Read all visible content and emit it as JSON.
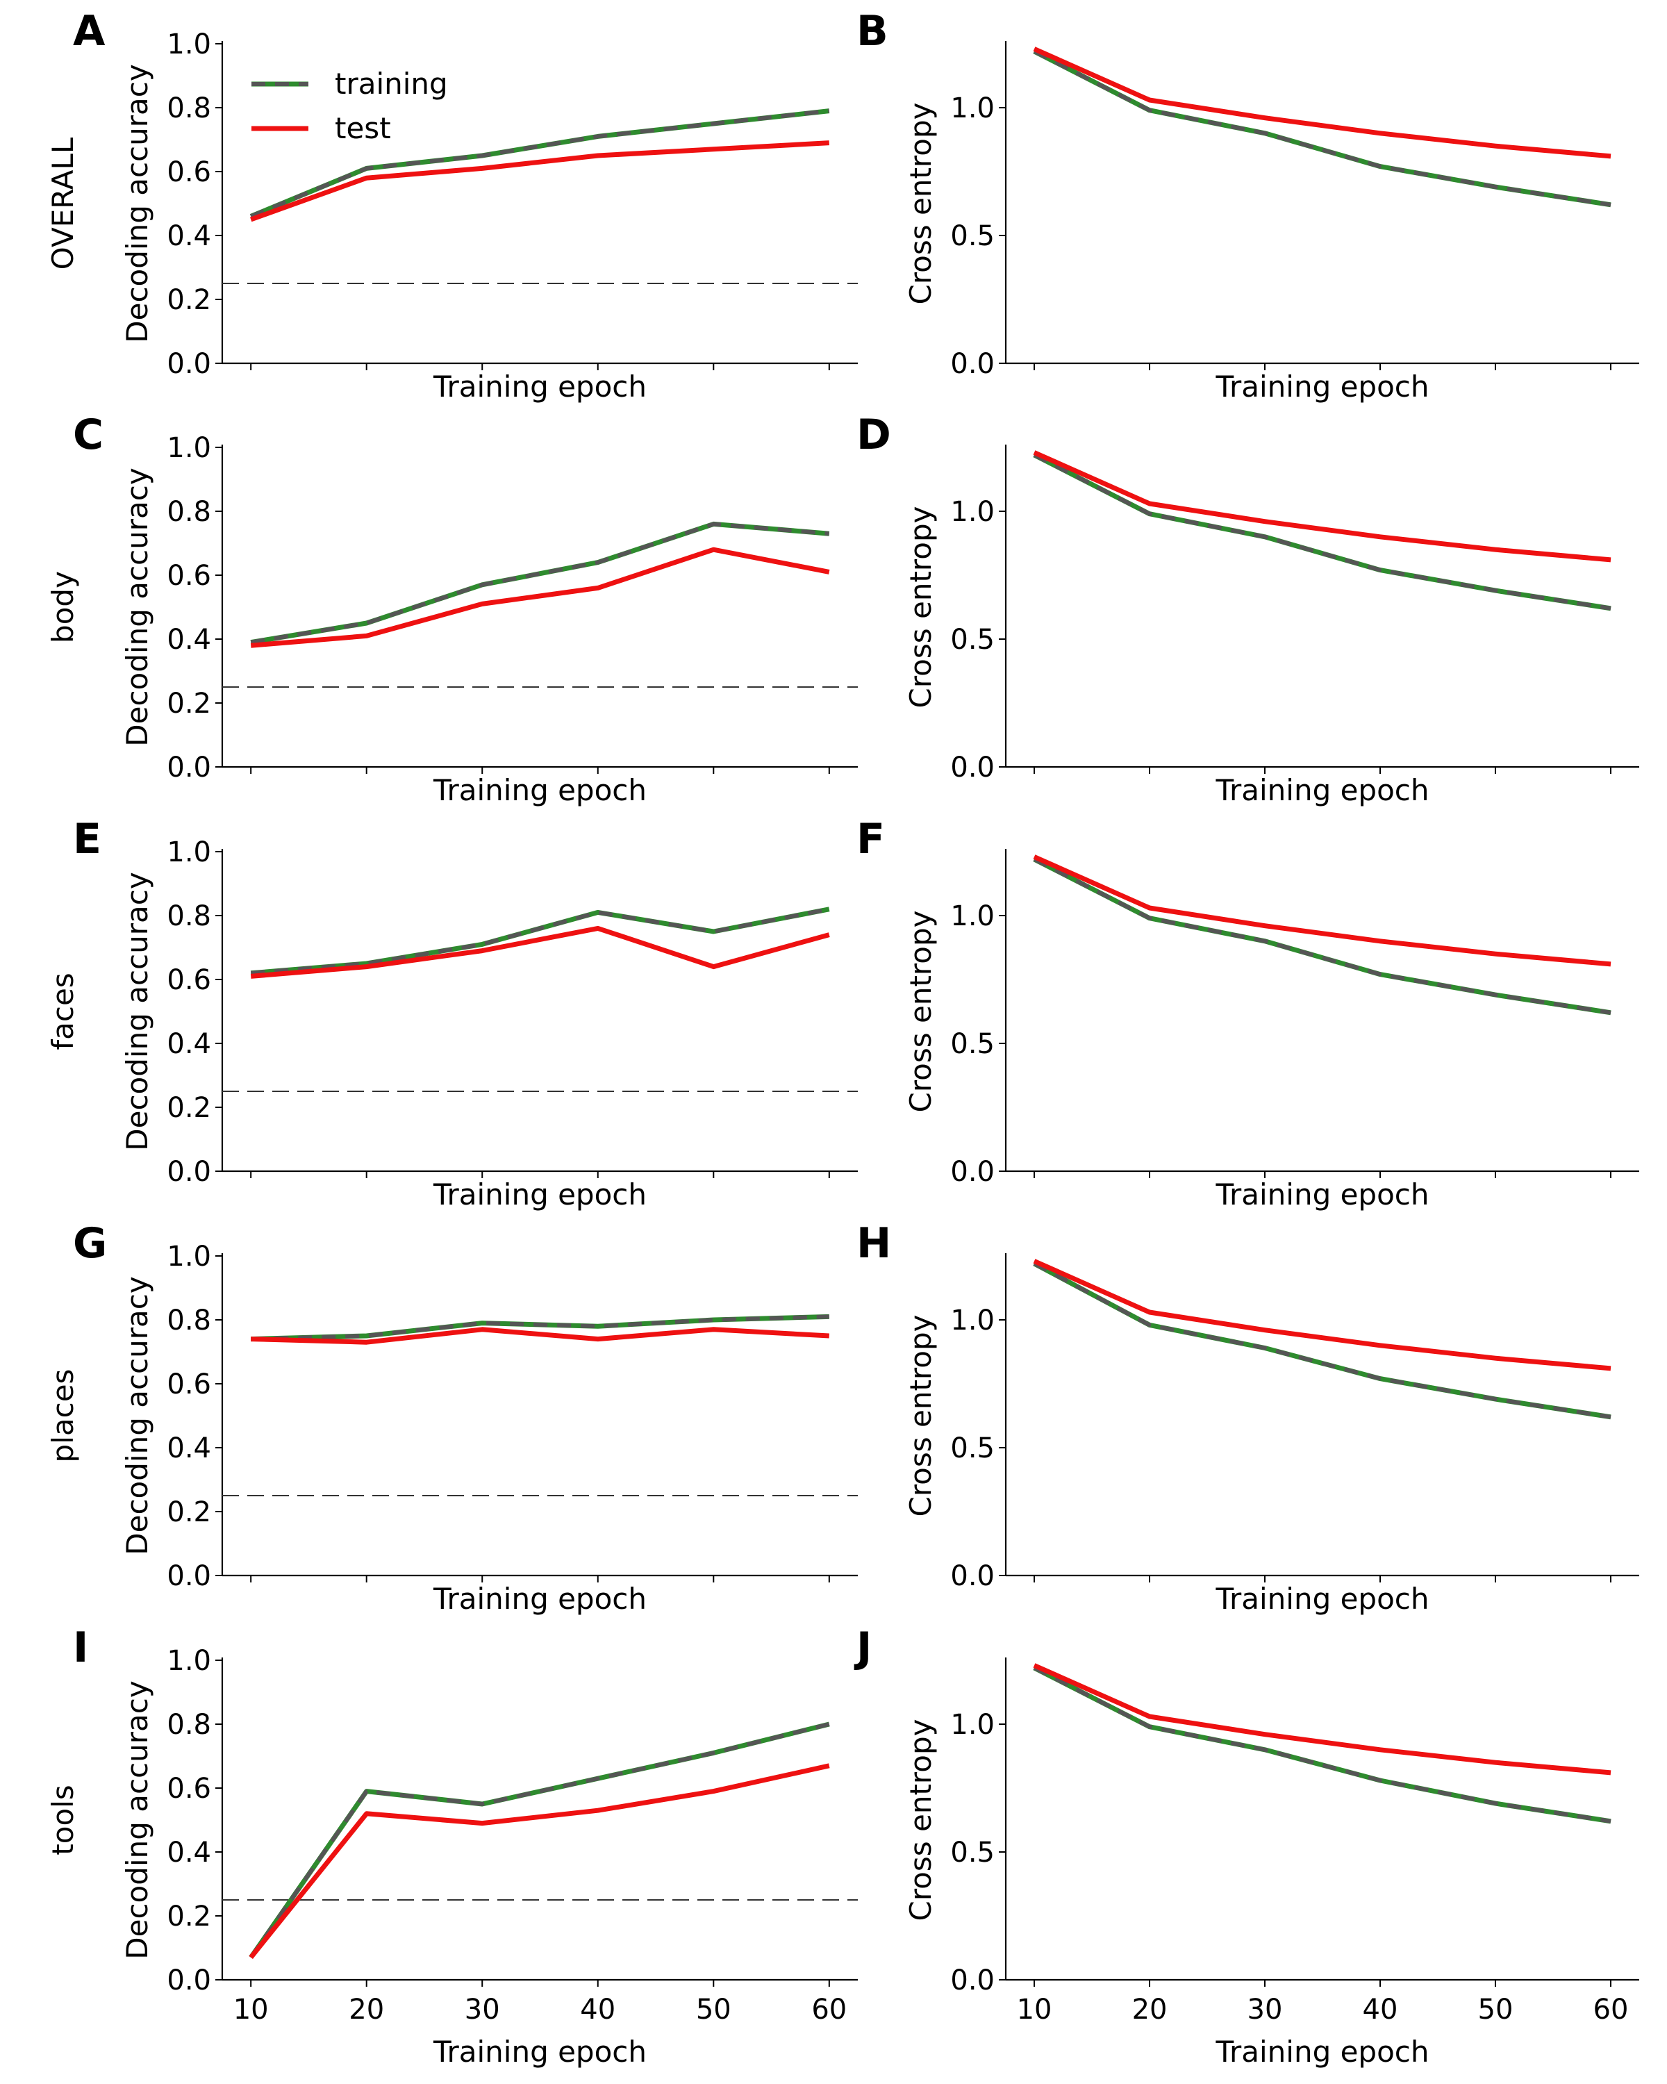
{
  "legend": {
    "training_label": "training",
    "test_label": "test"
  },
  "colors": {
    "training": "#2e8b2e",
    "training_overlay": "#555555",
    "test": "#ee1111",
    "chance": "#333333",
    "axis": "#000000"
  },
  "chart_data": [
    {
      "panel": "A",
      "row_label": "OVERALL",
      "type": "line",
      "xlabel": "Training epoch",
      "ylabel": "Decoding accuracy",
      "x": [
        10,
        20,
        30,
        40,
        50,
        60
      ],
      "ylim": [
        0,
        1.0
      ],
      "yticks": [
        "0.0",
        "0.2",
        "0.4",
        "0.6",
        "0.8",
        "1.0"
      ],
      "xticks": [
        "10",
        "20",
        "30",
        "40",
        "50",
        "60"
      ],
      "show_xtick_labels": false,
      "chance_level": 0.25,
      "series": [
        {
          "name": "training",
          "style": "dashed",
          "values": [
            0.46,
            0.61,
            0.65,
            0.71,
            0.75,
            0.79
          ]
        },
        {
          "name": "test",
          "style": "solid",
          "values": [
            0.45,
            0.58,
            0.61,
            0.65,
            0.67,
            0.69
          ]
        }
      ],
      "legend": "top-left"
    },
    {
      "panel": "B",
      "type": "line",
      "xlabel": "Training epoch",
      "ylabel": "Cross entropy",
      "x": [
        10,
        20,
        30,
        40,
        50,
        60
      ],
      "ylim": [
        0,
        1.25
      ],
      "yticks": [
        "0.0",
        "0.5",
        "1.0"
      ],
      "xticks": [
        "10",
        "20",
        "30",
        "40",
        "50",
        "60"
      ],
      "show_xtick_labels": false,
      "series": [
        {
          "name": "training",
          "style": "dashed",
          "values": [
            1.22,
            0.99,
            0.9,
            0.77,
            0.69,
            0.62
          ]
        },
        {
          "name": "test",
          "style": "solid",
          "values": [
            1.23,
            1.03,
            0.96,
            0.9,
            0.85,
            0.81
          ]
        }
      ]
    },
    {
      "panel": "C",
      "row_label": "body",
      "type": "line",
      "xlabel": "Training epoch",
      "ylabel": "Decoding accuracy",
      "x": [
        10,
        20,
        30,
        40,
        50,
        60
      ],
      "ylim": [
        0,
        1.0
      ],
      "yticks": [
        "0.0",
        "0.2",
        "0.4",
        "0.6",
        "0.8",
        "1.0"
      ],
      "xticks": [
        "10",
        "20",
        "30",
        "40",
        "50",
        "60"
      ],
      "show_xtick_labels": false,
      "chance_level": 0.25,
      "series": [
        {
          "name": "training",
          "style": "dashed",
          "values": [
            0.39,
            0.45,
            0.57,
            0.64,
            0.76,
            0.73
          ]
        },
        {
          "name": "test",
          "style": "solid",
          "values": [
            0.38,
            0.41,
            0.51,
            0.56,
            0.68,
            0.61
          ]
        }
      ]
    },
    {
      "panel": "D",
      "type": "line",
      "xlabel": "Training epoch",
      "ylabel": "Cross entropy",
      "x": [
        10,
        20,
        30,
        40,
        50,
        60
      ],
      "ylim": [
        0,
        1.25
      ],
      "yticks": [
        "0.0",
        "0.5",
        "1.0"
      ],
      "xticks": [
        "10",
        "20",
        "30",
        "40",
        "50",
        "60"
      ],
      "show_xtick_labels": false,
      "series": [
        {
          "name": "training",
          "style": "dashed",
          "values": [
            1.22,
            0.99,
            0.9,
            0.77,
            0.69,
            0.62
          ]
        },
        {
          "name": "test",
          "style": "solid",
          "values": [
            1.23,
            1.03,
            0.96,
            0.9,
            0.85,
            0.81
          ]
        }
      ]
    },
    {
      "panel": "E",
      "row_label": "faces",
      "type": "line",
      "xlabel": "Training epoch",
      "ylabel": "Decoding accuracy",
      "x": [
        10,
        20,
        30,
        40,
        50,
        60
      ],
      "ylim": [
        0,
        1.0
      ],
      "yticks": [
        "0.0",
        "0.2",
        "0.4",
        "0.6",
        "0.8",
        "1.0"
      ],
      "xticks": [
        "10",
        "20",
        "30",
        "40",
        "50",
        "60"
      ],
      "show_xtick_labels": false,
      "chance_level": 0.25,
      "series": [
        {
          "name": "training",
          "style": "dashed",
          "values": [
            0.62,
            0.65,
            0.71,
            0.81,
            0.75,
            0.82
          ]
        },
        {
          "name": "test",
          "style": "solid",
          "values": [
            0.61,
            0.64,
            0.69,
            0.76,
            0.64,
            0.74
          ]
        }
      ]
    },
    {
      "panel": "F",
      "type": "line",
      "xlabel": "Training epoch",
      "ylabel": "Cross entropy",
      "x": [
        10,
        20,
        30,
        40,
        50,
        60
      ],
      "ylim": [
        0,
        1.25
      ],
      "yticks": [
        "0.0",
        "0.5",
        "1.0"
      ],
      "xticks": [
        "10",
        "20",
        "30",
        "40",
        "50",
        "60"
      ],
      "show_xtick_labels": false,
      "series": [
        {
          "name": "training",
          "style": "dashed",
          "values": [
            1.22,
            0.99,
            0.9,
            0.77,
            0.69,
            0.62
          ]
        },
        {
          "name": "test",
          "style": "solid",
          "values": [
            1.23,
            1.03,
            0.96,
            0.9,
            0.85,
            0.81
          ]
        }
      ]
    },
    {
      "panel": "G",
      "row_label": "places",
      "type": "line",
      "xlabel": "Training epoch",
      "ylabel": "Decoding accuracy",
      "x": [
        10,
        20,
        30,
        40,
        50,
        60
      ],
      "ylim": [
        0,
        1.0
      ],
      "yticks": [
        "0.0",
        "0.2",
        "0.4",
        "0.6",
        "0.8",
        "1.0"
      ],
      "xticks": [
        "10",
        "20",
        "30",
        "40",
        "50",
        "60"
      ],
      "show_xtick_labels": false,
      "chance_level": 0.25,
      "series": [
        {
          "name": "training",
          "style": "dashed",
          "values": [
            0.74,
            0.75,
            0.79,
            0.78,
            0.8,
            0.81
          ]
        },
        {
          "name": "test",
          "style": "solid",
          "values": [
            0.74,
            0.73,
            0.77,
            0.74,
            0.77,
            0.75
          ]
        }
      ]
    },
    {
      "panel": "H",
      "type": "line",
      "xlabel": "Training epoch",
      "ylabel": "Cross entropy",
      "x": [
        10,
        20,
        30,
        40,
        50,
        60
      ],
      "ylim": [
        0,
        1.25
      ],
      "yticks": [
        "0.0",
        "0.5",
        "1.0"
      ],
      "xticks": [
        "10",
        "20",
        "30",
        "40",
        "50",
        "60"
      ],
      "show_xtick_labels": false,
      "series": [
        {
          "name": "training",
          "style": "dashed",
          "values": [
            1.22,
            0.98,
            0.89,
            0.77,
            0.69,
            0.62
          ]
        },
        {
          "name": "test",
          "style": "solid",
          "values": [
            1.23,
            1.03,
            0.96,
            0.9,
            0.85,
            0.81
          ]
        }
      ]
    },
    {
      "panel": "I",
      "row_label": "tools",
      "type": "line",
      "xlabel": "Training epoch",
      "ylabel": "Decoding accuracy",
      "x": [
        10,
        20,
        30,
        40,
        50,
        60
      ],
      "ylim": [
        0,
        1.0
      ],
      "yticks": [
        "0.0",
        "0.2",
        "0.4",
        "0.6",
        "0.8",
        "1.0"
      ],
      "xticks": [
        "10",
        "20",
        "30",
        "40",
        "50",
        "60"
      ],
      "show_xtick_labels": true,
      "chance_level": 0.25,
      "series": [
        {
          "name": "training",
          "style": "dashed",
          "values": [
            0.07,
            0.59,
            0.55,
            0.63,
            0.71,
            0.8
          ]
        },
        {
          "name": "test",
          "style": "solid",
          "values": [
            0.07,
            0.52,
            0.49,
            0.53,
            0.59,
            0.67
          ]
        }
      ]
    },
    {
      "panel": "J",
      "type": "line",
      "xlabel": "Training epoch",
      "ylabel": "Cross entropy",
      "x": [
        10,
        20,
        30,
        40,
        50,
        60
      ],
      "ylim": [
        0,
        1.25
      ],
      "yticks": [
        "0.0",
        "0.5",
        "1.0"
      ],
      "xticks": [
        "10",
        "20",
        "30",
        "40",
        "50",
        "60"
      ],
      "show_xtick_labels": true,
      "series": [
        {
          "name": "training",
          "style": "dashed",
          "values": [
            1.22,
            0.99,
            0.9,
            0.78,
            0.69,
            0.62
          ]
        },
        {
          "name": "test",
          "style": "solid",
          "values": [
            1.23,
            1.03,
            0.96,
            0.9,
            0.85,
            0.81
          ]
        }
      ]
    }
  ]
}
